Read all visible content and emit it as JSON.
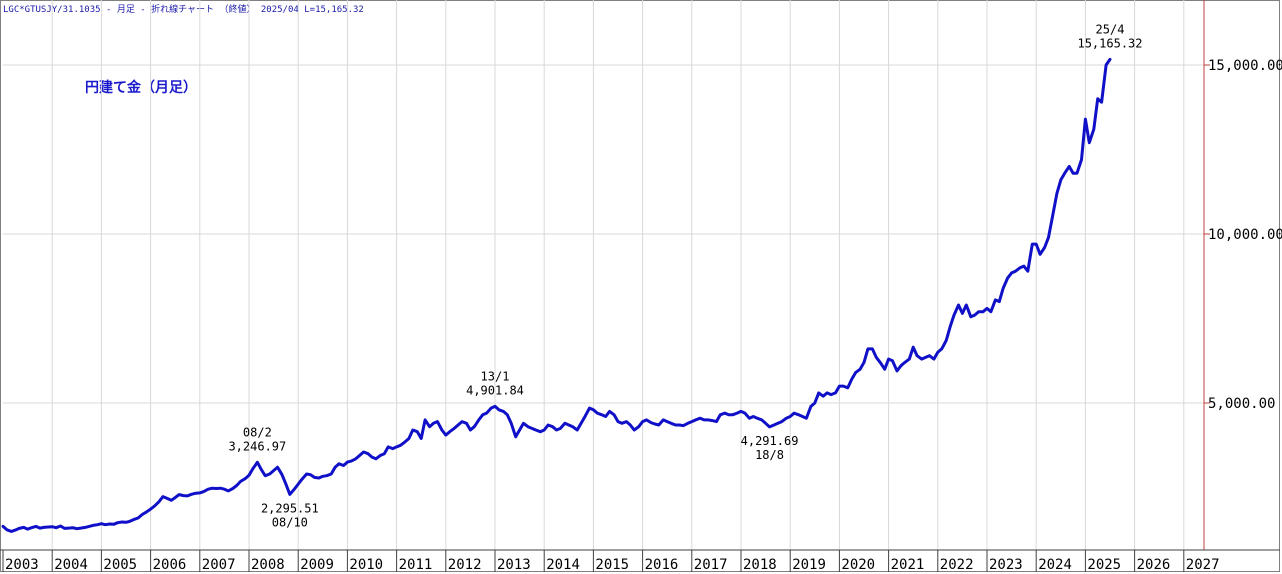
{
  "header": {
    "symbol": "LGC*GTUSJY/31.1035",
    "sep1": " - ",
    "frequency": "月足",
    "sep2": " - ",
    "chart_kind": "折れ線チャート",
    "price_mode": "（終値）",
    "last_period": "2025/04",
    "last_value": "L=15,165.32"
  },
  "colors": {
    "line": "#1010c8",
    "grid": "#d8d8d8",
    "axis": "#c04040",
    "text": "#000000"
  },
  "chart_data": {
    "type": "line",
    "title": "円建て金（月足）",
    "xlabel": "",
    "ylabel": "",
    "x_range": [
      2003.0,
      2027.0
    ],
    "ylim": [
      1000,
      16800
    ],
    "y_ticks": [
      5000,
      10000,
      15000
    ],
    "y_tick_labels": [
      "5,000.00",
      "10,000.00",
      "15,000.00"
    ],
    "x_ticks": [
      "2003",
      "2004",
      "2005",
      "2006",
      "2007",
      "2008",
      "2009",
      "2010",
      "2011",
      "2012",
      "2013",
      "2014",
      "2015",
      "2016",
      "2017",
      "2018",
      "2019",
      "2020",
      "2021",
      "2022",
      "2023",
      "2024",
      "2025",
      "2026",
      "2027"
    ],
    "grid": true,
    "series": [
      {
        "values": [
          [
            2003.0,
            1350
          ],
          [
            2003.08,
            1250
          ],
          [
            2003.17,
            1200
          ],
          [
            2003.25,
            1240
          ],
          [
            2003.33,
            1290
          ],
          [
            2003.42,
            1320
          ],
          [
            2003.5,
            1270
          ],
          [
            2003.58,
            1310
          ],
          [
            2003.67,
            1350
          ],
          [
            2003.75,
            1300
          ],
          [
            2003.83,
            1320
          ],
          [
            2003.92,
            1330
          ],
          [
            2004.0,
            1340
          ],
          [
            2004.08,
            1310
          ],
          [
            2004.17,
            1360
          ],
          [
            2004.25,
            1290
          ],
          [
            2004.33,
            1300
          ],
          [
            2004.42,
            1310
          ],
          [
            2004.5,
            1280
          ],
          [
            2004.58,
            1300
          ],
          [
            2004.67,
            1320
          ],
          [
            2004.75,
            1350
          ],
          [
            2004.83,
            1380
          ],
          [
            2004.92,
            1400
          ],
          [
            2005.0,
            1430
          ],
          [
            2005.08,
            1400
          ],
          [
            2005.17,
            1420
          ],
          [
            2005.25,
            1410
          ],
          [
            2005.33,
            1460
          ],
          [
            2005.42,
            1480
          ],
          [
            2005.5,
            1470
          ],
          [
            2005.58,
            1500
          ],
          [
            2005.67,
            1560
          ],
          [
            2005.75,
            1600
          ],
          [
            2005.83,
            1700
          ],
          [
            2005.92,
            1780
          ],
          [
            2006.0,
            1860
          ],
          [
            2006.08,
            1950
          ],
          [
            2006.17,
            2080
          ],
          [
            2006.25,
            2230
          ],
          [
            2006.33,
            2180
          ],
          [
            2006.42,
            2120
          ],
          [
            2006.5,
            2200
          ],
          [
            2006.58,
            2290
          ],
          [
            2006.67,
            2260
          ],
          [
            2006.75,
            2250
          ],
          [
            2006.83,
            2300
          ],
          [
            2006.92,
            2330
          ],
          [
            2007.0,
            2340
          ],
          [
            2007.08,
            2380
          ],
          [
            2007.17,
            2450
          ],
          [
            2007.25,
            2480
          ],
          [
            2007.33,
            2470
          ],
          [
            2007.42,
            2480
          ],
          [
            2007.5,
            2450
          ],
          [
            2007.58,
            2400
          ],
          [
            2007.67,
            2470
          ],
          [
            2007.75,
            2560
          ],
          [
            2007.83,
            2680
          ],
          [
            2007.92,
            2760
          ],
          [
            2008.0,
            2860
          ],
          [
            2008.08,
            3060
          ],
          [
            2008.17,
            3247
          ],
          [
            2008.25,
            3030
          ],
          [
            2008.33,
            2850
          ],
          [
            2008.42,
            2900
          ],
          [
            2008.5,
            3000
          ],
          [
            2008.58,
            3100
          ],
          [
            2008.67,
            2880
          ],
          [
            2008.75,
            2600
          ],
          [
            2008.83,
            2296
          ],
          [
            2008.92,
            2450
          ],
          [
            2009.0,
            2600
          ],
          [
            2009.08,
            2750
          ],
          [
            2009.17,
            2900
          ],
          [
            2009.25,
            2880
          ],
          [
            2009.33,
            2800
          ],
          [
            2009.42,
            2780
          ],
          [
            2009.5,
            2830
          ],
          [
            2009.58,
            2850
          ],
          [
            2009.67,
            2900
          ],
          [
            2009.75,
            3100
          ],
          [
            2009.83,
            3200
          ],
          [
            2009.92,
            3150
          ],
          [
            2010.0,
            3250
          ],
          [
            2010.08,
            3280
          ],
          [
            2010.17,
            3350
          ],
          [
            2010.25,
            3450
          ],
          [
            2010.33,
            3550
          ],
          [
            2010.42,
            3500
          ],
          [
            2010.5,
            3400
          ],
          [
            2010.58,
            3350
          ],
          [
            2010.67,
            3450
          ],
          [
            2010.75,
            3500
          ],
          [
            2010.83,
            3700
          ],
          [
            2010.92,
            3650
          ],
          [
            2011.0,
            3700
          ],
          [
            2011.08,
            3750
          ],
          [
            2011.17,
            3850
          ],
          [
            2011.25,
            3950
          ],
          [
            2011.33,
            4200
          ],
          [
            2011.42,
            4150
          ],
          [
            2011.5,
            3950
          ],
          [
            2011.58,
            4500
          ],
          [
            2011.67,
            4300
          ],
          [
            2011.75,
            4400
          ],
          [
            2011.83,
            4450
          ],
          [
            2011.92,
            4200
          ],
          [
            2012.0,
            4050
          ],
          [
            2012.08,
            4150
          ],
          [
            2012.17,
            4250
          ],
          [
            2012.25,
            4350
          ],
          [
            2012.33,
            4450
          ],
          [
            2012.42,
            4400
          ],
          [
            2012.5,
            4200
          ],
          [
            2012.58,
            4300
          ],
          [
            2012.67,
            4500
          ],
          [
            2012.75,
            4650
          ],
          [
            2012.83,
            4700
          ],
          [
            2012.92,
            4850
          ],
          [
            2013.0,
            4902
          ],
          [
            2013.08,
            4800
          ],
          [
            2013.17,
            4750
          ],
          [
            2013.25,
            4650
          ],
          [
            2013.33,
            4400
          ],
          [
            2013.42,
            4000
          ],
          [
            2013.5,
            4200
          ],
          [
            2013.58,
            4400
          ],
          [
            2013.67,
            4300
          ],
          [
            2013.75,
            4250
          ],
          [
            2013.83,
            4200
          ],
          [
            2013.92,
            4150
          ],
          [
            2014.0,
            4200
          ],
          [
            2014.08,
            4350
          ],
          [
            2014.17,
            4300
          ],
          [
            2014.25,
            4200
          ],
          [
            2014.33,
            4250
          ],
          [
            2014.42,
            4400
          ],
          [
            2014.5,
            4350
          ],
          [
            2014.58,
            4300
          ],
          [
            2014.67,
            4200
          ],
          [
            2014.75,
            4400
          ],
          [
            2014.83,
            4600
          ],
          [
            2014.92,
            4850
          ],
          [
            2015.0,
            4800
          ],
          [
            2015.08,
            4700
          ],
          [
            2015.17,
            4650
          ],
          [
            2015.25,
            4600
          ],
          [
            2015.33,
            4750
          ],
          [
            2015.42,
            4650
          ],
          [
            2015.5,
            4450
          ],
          [
            2015.58,
            4400
          ],
          [
            2015.67,
            4450
          ],
          [
            2015.75,
            4350
          ],
          [
            2015.83,
            4200
          ],
          [
            2015.92,
            4300
          ],
          [
            2016.0,
            4450
          ],
          [
            2016.08,
            4500
          ],
          [
            2016.17,
            4420
          ],
          [
            2016.25,
            4380
          ],
          [
            2016.33,
            4350
          ],
          [
            2016.42,
            4500
          ],
          [
            2016.5,
            4450
          ],
          [
            2016.58,
            4400
          ],
          [
            2016.67,
            4350
          ],
          [
            2016.75,
            4350
          ],
          [
            2016.83,
            4330
          ],
          [
            2016.92,
            4400
          ],
          [
            2017.0,
            4450
          ],
          [
            2017.08,
            4500
          ],
          [
            2017.17,
            4550
          ],
          [
            2017.25,
            4500
          ],
          [
            2017.33,
            4500
          ],
          [
            2017.42,
            4480
          ],
          [
            2017.5,
            4450
          ],
          [
            2017.58,
            4650
          ],
          [
            2017.67,
            4700
          ],
          [
            2017.75,
            4650
          ],
          [
            2017.83,
            4650
          ],
          [
            2017.92,
            4700
          ],
          [
            2018.0,
            4750
          ],
          [
            2018.08,
            4700
          ],
          [
            2018.17,
            4550
          ],
          [
            2018.25,
            4600
          ],
          [
            2018.33,
            4550
          ],
          [
            2018.42,
            4500
          ],
          [
            2018.5,
            4400
          ],
          [
            2018.58,
            4292
          ],
          [
            2018.67,
            4350
          ],
          [
            2018.75,
            4400
          ],
          [
            2018.83,
            4450
          ],
          [
            2018.92,
            4550
          ],
          [
            2019.0,
            4600
          ],
          [
            2019.08,
            4700
          ],
          [
            2019.17,
            4650
          ],
          [
            2019.25,
            4600
          ],
          [
            2019.33,
            4550
          ],
          [
            2019.42,
            4900
          ],
          [
            2019.5,
            5000
          ],
          [
            2019.58,
            5300
          ],
          [
            2019.67,
            5200
          ],
          [
            2019.75,
            5300
          ],
          [
            2019.83,
            5250
          ],
          [
            2019.92,
            5300
          ],
          [
            2020.0,
            5500
          ],
          [
            2020.08,
            5500
          ],
          [
            2020.17,
            5450
          ],
          [
            2020.25,
            5700
          ],
          [
            2020.33,
            5900
          ],
          [
            2020.42,
            6000
          ],
          [
            2020.5,
            6200
          ],
          [
            2020.58,
            6600
          ],
          [
            2020.67,
            6600
          ],
          [
            2020.75,
            6350
          ],
          [
            2020.83,
            6200
          ],
          [
            2020.92,
            6000
          ],
          [
            2021.0,
            6300
          ],
          [
            2021.08,
            6250
          ],
          [
            2021.17,
            5950
          ],
          [
            2021.25,
            6100
          ],
          [
            2021.33,
            6200
          ],
          [
            2021.42,
            6300
          ],
          [
            2021.5,
            6650
          ],
          [
            2021.58,
            6400
          ],
          [
            2021.67,
            6300
          ],
          [
            2021.75,
            6350
          ],
          [
            2021.83,
            6400
          ],
          [
            2021.92,
            6300
          ],
          [
            2022.0,
            6500
          ],
          [
            2022.08,
            6600
          ],
          [
            2022.17,
            6850
          ],
          [
            2022.25,
            7250
          ],
          [
            2022.33,
            7600
          ],
          [
            2022.42,
            7900
          ],
          [
            2022.5,
            7650
          ],
          [
            2022.58,
            7900
          ],
          [
            2022.67,
            7550
          ],
          [
            2022.75,
            7600
          ],
          [
            2022.83,
            7700
          ],
          [
            2022.92,
            7700
          ],
          [
            2023.0,
            7800
          ],
          [
            2023.08,
            7700
          ],
          [
            2023.17,
            8050
          ],
          [
            2023.25,
            8000
          ],
          [
            2023.33,
            8400
          ],
          [
            2023.42,
            8700
          ],
          [
            2023.5,
            8850
          ],
          [
            2023.58,
            8900
          ],
          [
            2023.67,
            9000
          ],
          [
            2023.75,
            9050
          ],
          [
            2023.83,
            8900
          ],
          [
            2023.92,
            9700
          ],
          [
            2024.0,
            9700
          ],
          [
            2024.08,
            9400
          ],
          [
            2024.17,
            9600
          ],
          [
            2024.25,
            9900
          ],
          [
            2024.33,
            10500
          ],
          [
            2024.42,
            11200
          ],
          [
            2024.5,
            11600
          ],
          [
            2024.58,
            11800
          ],
          [
            2024.67,
            12000
          ],
          [
            2024.75,
            11800
          ],
          [
            2024.83,
            11800
          ],
          [
            2024.92,
            12200
          ],
          [
            2025.0,
            13400
          ],
          [
            2025.08,
            12700
          ],
          [
            2025.17,
            13100
          ],
          [
            2025.25,
            14000
          ],
          [
            2025.33,
            13900
          ],
          [
            2025.42,
            15000
          ],
          [
            2025.5,
            15165
          ]
        ]
      }
    ],
    "annotations": [
      {
        "date": "08/2",
        "value": "3,246.97",
        "x": 2008.17,
        "y": 3247,
        "side": "above"
      },
      {
        "date": "08/10",
        "value": "2,295.51",
        "x": 2008.83,
        "y": 2296,
        "side": "below"
      },
      {
        "date": "13/1",
        "value": "4,901.84",
        "x": 2013.0,
        "y": 4902,
        "side": "above"
      },
      {
        "date": "18/8",
        "value": "4,291.69",
        "x": 2018.58,
        "y": 4292,
        "side": "below"
      },
      {
        "date": "25/4",
        "value": "15,165.32",
        "x": 2025.5,
        "y": 15165,
        "side": "above"
      }
    ]
  }
}
